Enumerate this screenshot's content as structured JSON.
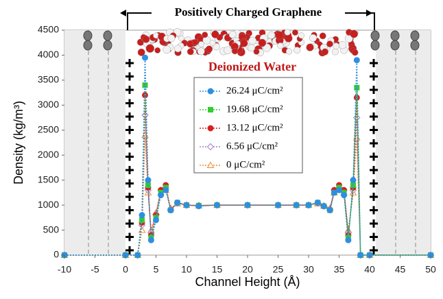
{
  "chart_data": {
    "type": "line",
    "title": "Positively Charged Graphene",
    "annotation": "Deionized Water",
    "xlabel": "Channel Height (Å)",
    "ylabel": "Density (kg/m³)",
    "xlim": [
      -10,
      50
    ],
    "ylim": [
      0,
      4500
    ],
    "xticks": [
      -10,
      -5,
      0,
      5,
      10,
      15,
      20,
      25,
      30,
      35,
      40,
      45,
      50
    ],
    "yticks": [
      0,
      500,
      1000,
      1500,
      2000,
      2500,
      3000,
      3500,
      4000,
      4500
    ],
    "grid": false,
    "legend": "top-center",
    "x": [
      -10,
      0,
      2,
      2.7,
      3.2,
      3.7,
      4.2,
      5,
      5.8,
      6.6,
      7.4,
      8.5,
      10,
      12,
      15,
      20,
      25,
      28,
      30,
      31.5,
      32.5,
      33.5,
      34.2,
      35,
      35.8,
      36.5,
      37.3,
      37.9,
      38.5,
      40,
      50
    ],
    "series": [
      {
        "name": "26.24 μC/cm²",
        "color": "#2e8fe0",
        "marker": "circle",
        "values": [
          0,
          0,
          0,
          800,
          3950,
          1500,
          300,
          700,
          1200,
          1300,
          900,
          1050,
          1000,
          980,
          1000,
          1000,
          1000,
          1000,
          1000,
          1050,
          980,
          900,
          1250,
          1300,
          1200,
          300,
          1500,
          3900,
          0,
          0,
          0
        ]
      },
      {
        "name": "19.68 μC/cm²",
        "color": "#33cc33",
        "marker": "square",
        "values": [
          0,
          0,
          0,
          700,
          3400,
          1400,
          350,
          750,
          1250,
          1350,
          900,
          1050,
          1000,
          990,
          1000,
          1000,
          1000,
          1000,
          1000,
          1050,
          980,
          900,
          1250,
          1350,
          1250,
          350,
          1400,
          3350,
          0,
          0,
          0
        ]
      },
      {
        "name": "13.12 μC/cm²",
        "color": "#d62020",
        "marker": "circle",
        "values": [
          0,
          0,
          0,
          650,
          3200,
          1350,
          400,
          800,
          1300,
          1400,
          900,
          1050,
          1000,
          990,
          1000,
          1000,
          1000,
          1000,
          1000,
          1050,
          980,
          900,
          1300,
          1400,
          1300,
          400,
          1350,
          3150,
          0,
          0,
          0
        ]
      },
      {
        "name": "6.56 μC/cm²",
        "color": "#a37fc9",
        "marker": "diamond",
        "values": [
          0,
          0,
          0,
          600,
          2800,
          1300,
          450,
          820,
          1300,
          1350,
          920,
          1040,
          1000,
          990,
          1000,
          1000,
          1000,
          1000,
          1000,
          1040,
          980,
          920,
          1300,
          1350,
          1300,
          450,
          1300,
          2750,
          0,
          0,
          0
        ]
      },
      {
        "name": "0 μC/cm²",
        "color": "#f08a30",
        "marker": "triangle",
        "values": [
          0,
          0,
          0,
          500,
          2400,
          1250,
          500,
          850,
          1250,
          1300,
          940,
          1030,
          1000,
          990,
          1000,
          1000,
          1000,
          1000,
          1000,
          1030,
          990,
          940,
          1250,
          1300,
          1250,
          500,
          1250,
          2350,
          0,
          0,
          0
        ]
      }
    ]
  }
}
